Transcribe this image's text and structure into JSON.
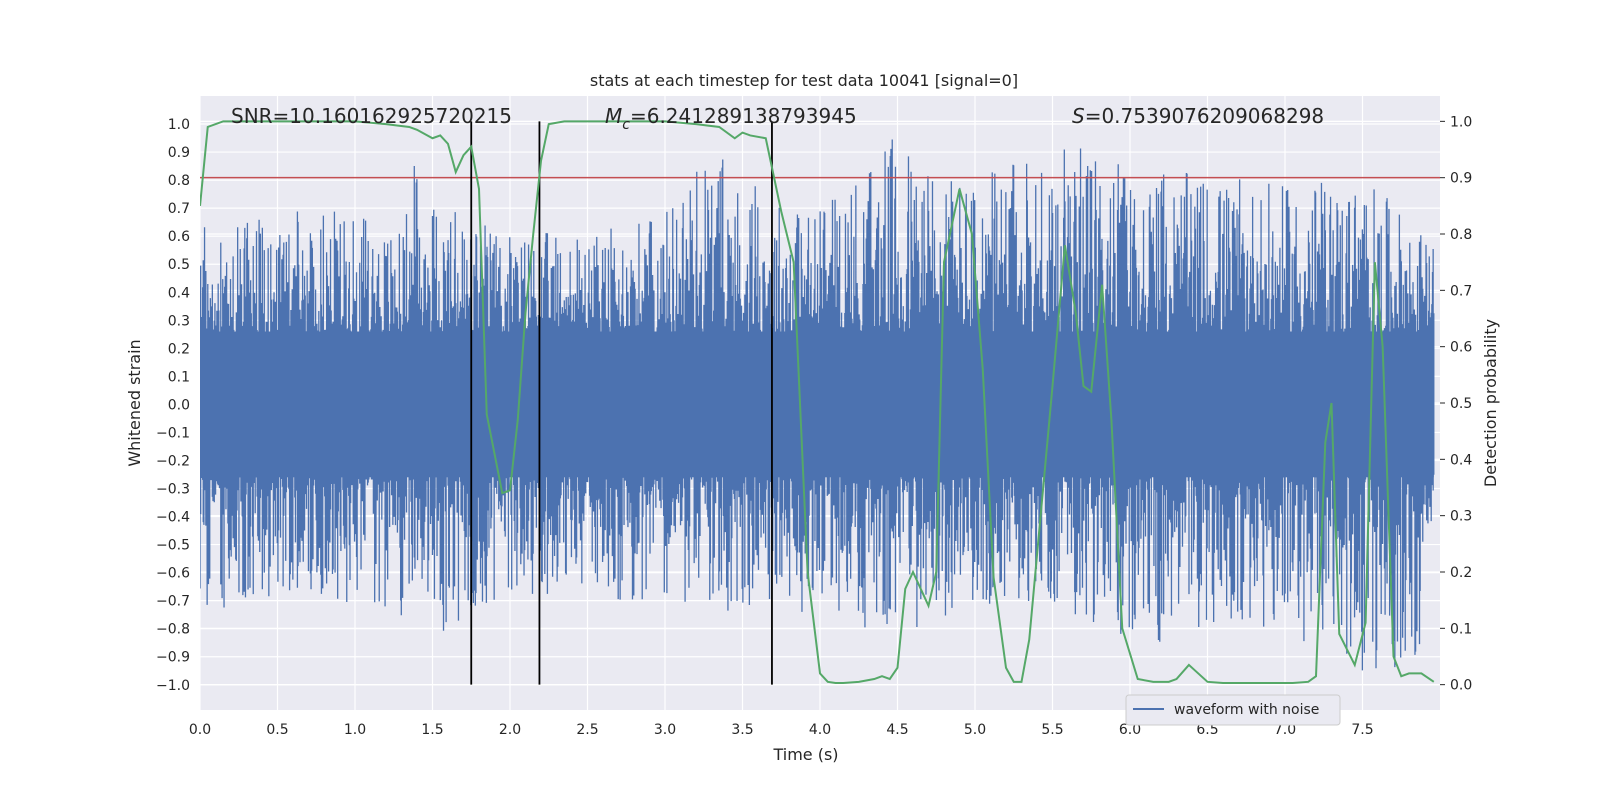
{
  "chart_data": {
    "type": "line",
    "title": "stats at each timestep for test data 10041 [signal=0]",
    "xlabel": "Time (s)",
    "ylabel": "Whitened strain",
    "y2label": "Detection probability",
    "xlim": [
      0.0,
      8.0
    ],
    "ylim": [
      -1.09,
      1.1
    ],
    "y2lim": [
      -0.045,
      1.045
    ],
    "x_ticks": [
      0.0,
      0.5,
      1.0,
      1.5,
      2.0,
      2.5,
      3.0,
      3.5,
      4.0,
      4.5,
      5.0,
      5.5,
      6.0,
      6.5,
      7.0,
      7.5
    ],
    "x_tick_labels": [
      "0.0",
      "0.5",
      "1.0",
      "1.5",
      "2.0",
      "2.5",
      "3.0",
      "3.5",
      "4.0",
      "4.5",
      "5.0",
      "5.5",
      "6.0",
      "6.5",
      "7.0",
      "7.5"
    ],
    "y_ticks": [
      1.0,
      0.9,
      0.8,
      0.7,
      0.6,
      0.5,
      0.4,
      0.3,
      0.2,
      0.1,
      0.0,
      -0.1,
      -0.2,
      -0.3,
      -0.4,
      -0.5,
      -0.6,
      -0.7,
      -0.8,
      -0.9,
      -1.0
    ],
    "y_tick_labels": [
      "1.0",
      "0.9",
      "0.8",
      "0.7",
      "0.6",
      "0.5",
      "0.4",
      "0.3",
      "0.2",
      "0.1",
      "0.0",
      "−0.1",
      "−0.2",
      "−0.3",
      "−0.4",
      "−0.5",
      "−0.6",
      "−0.7",
      "−0.8",
      "−0.9",
      "−1.0"
    ],
    "y2_ticks": [
      1.0,
      0.9,
      0.8,
      0.7,
      0.6,
      0.5,
      0.4,
      0.3,
      0.2,
      0.1,
      0.0
    ],
    "y2_tick_labels": [
      "1.0",
      "0.9",
      "0.8",
      "0.7",
      "0.6",
      "0.5",
      "0.4",
      "0.3",
      "0.2",
      "0.1",
      "0.0"
    ],
    "annotations": {
      "snr": "SNR=10.160162925720215",
      "mc_symbol": "M",
      "mc_subscript": "c",
      "mc_value": "=6.241289138793945",
      "s_symbol": "S",
      "s_value": "=0.7539076209068298"
    },
    "threshold": {
      "y2": 0.9,
      "color": "#c44e52"
    },
    "vertical_lines": [
      1.75,
      2.19,
      3.69
    ],
    "waveform": {
      "name": "waveform with noise",
      "color": "#4c72b0",
      "envelope_time": [
        0.0,
        0.2,
        0.5,
        0.8,
        1.0,
        1.3,
        1.4,
        1.5,
        1.75,
        2.0,
        2.19,
        2.5,
        3.0,
        3.28,
        3.5,
        3.69,
        4.0,
        4.5,
        5.0,
        5.5,
        6.0,
        6.5,
        7.0,
        7.5,
        7.96
      ],
      "envelope_max": [
        0.66,
        0.63,
        0.68,
        0.7,
        0.68,
        0.62,
        0.91,
        0.75,
        0.68,
        0.62,
        0.62,
        0.6,
        0.7,
        0.95,
        0.82,
        0.75,
        0.72,
        0.97,
        0.8,
        0.95,
        0.85,
        0.82,
        0.78,
        0.82,
        0.58
      ],
      "envelope_min": [
        -0.8,
        -0.75,
        -0.68,
        -0.68,
        -0.72,
        -0.78,
        -0.65,
        -0.88,
        -0.75,
        -0.7,
        -0.7,
        -0.68,
        -0.72,
        -0.75,
        -0.75,
        -0.7,
        -0.78,
        -0.82,
        -0.72,
        -0.7,
        -0.88,
        -0.8,
        -0.82,
        -0.98,
        -0.9
      ]
    },
    "probability": {
      "name": "detection probability",
      "color": "#55a868",
      "x": [
        0.0,
        0.05,
        0.15,
        0.3,
        0.6,
        1.0,
        1.2,
        1.35,
        1.4,
        1.5,
        1.55,
        1.6,
        1.65,
        1.7,
        1.75,
        1.8,
        1.85,
        1.95,
        2.0,
        2.05,
        2.1,
        2.15,
        2.2,
        2.25,
        2.35,
        2.6,
        3.0,
        3.2,
        3.35,
        3.45,
        3.5,
        3.55,
        3.65,
        3.75,
        3.83,
        3.92,
        4.0,
        4.05,
        4.1,
        4.15,
        4.25,
        4.35,
        4.4,
        4.45,
        4.5,
        4.55,
        4.6,
        4.7,
        4.75,
        4.8,
        4.9,
        4.98,
        5.05,
        5.12,
        5.2,
        5.25,
        5.3,
        5.35,
        5.5,
        5.58,
        5.65,
        5.7,
        5.75,
        5.82,
        5.88,
        5.95,
        6.05,
        6.15,
        6.25,
        6.3,
        6.38,
        6.42,
        6.5,
        6.6,
        6.9,
        7.05,
        7.15,
        7.2,
        7.26,
        7.3,
        7.35,
        7.45,
        7.52,
        7.58,
        7.63,
        7.7,
        7.75,
        7.8,
        7.88,
        7.96
      ],
      "y": [
        0.85,
        0.99,
        1.0,
        1.0,
        1.0,
        1.0,
        0.995,
        0.99,
        0.985,
        0.97,
        0.975,
        0.96,
        0.91,
        0.94,
        0.955,
        0.88,
        0.48,
        0.34,
        0.345,
        0.47,
        0.66,
        0.8,
        0.93,
        0.995,
        1.0,
        1.0,
        1.0,
        0.995,
        0.99,
        0.97,
        0.98,
        0.975,
        0.97,
        0.84,
        0.75,
        0.2,
        0.02,
        0.005,
        0.003,
        0.003,
        0.005,
        0.01,
        0.015,
        0.01,
        0.03,
        0.17,
        0.2,
        0.14,
        0.2,
        0.75,
        0.88,
        0.8,
        0.56,
        0.19,
        0.03,
        0.005,
        0.005,
        0.08,
        0.53,
        0.78,
        0.66,
        0.53,
        0.52,
        0.71,
        0.47,
        0.1,
        0.01,
        0.005,
        0.005,
        0.01,
        0.035,
        0.025,
        0.005,
        0.003,
        0.003,
        0.003,
        0.005,
        0.015,
        0.43,
        0.5,
        0.09,
        0.035,
        0.11,
        0.75,
        0.6,
        0.05,
        0.015,
        0.02,
        0.02,
        0.005
      ]
    },
    "legend": {
      "entries": [
        "waveform with noise"
      ],
      "position": "lower-right"
    }
  }
}
